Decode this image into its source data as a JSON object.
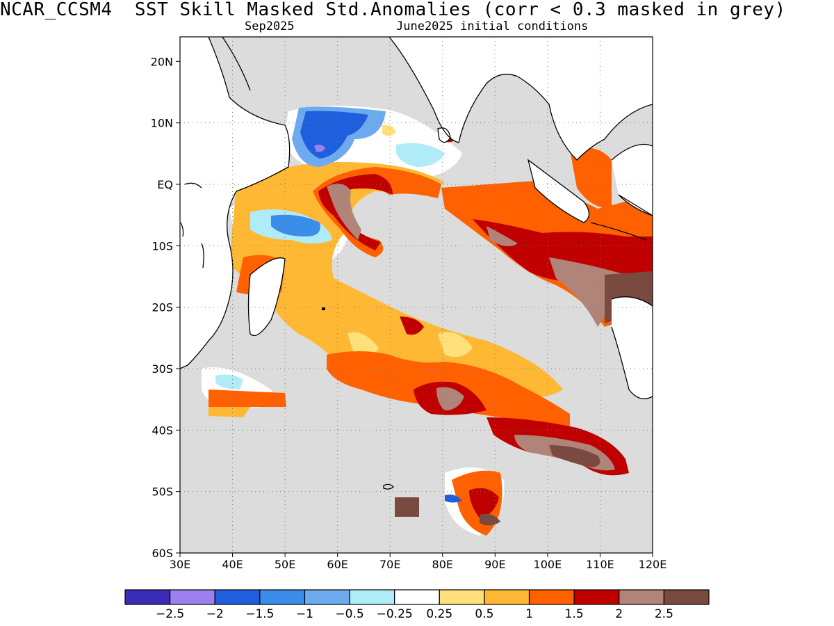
{
  "title": "NCAR_CCSM4  SST Skill Masked Std.Anomalies (corr < 0.3 masked in grey)",
  "subtitle_left": "Sep2025",
  "subtitle_right": "June2025 initial conditions",
  "map": {
    "lon_range": [
      30,
      120
    ],
    "lat_range": [
      -60,
      24
    ],
    "lat_ticks": [
      {
        "value": 20,
        "label": "20N"
      },
      {
        "value": 10,
        "label": "10N"
      },
      {
        "value": 0,
        "label": "EQ"
      },
      {
        "value": -10,
        "label": "10S"
      },
      {
        "value": -20,
        "label": "20S"
      },
      {
        "value": -30,
        "label": "30S"
      },
      {
        "value": -40,
        "label": "40S"
      },
      {
        "value": -50,
        "label": "50S"
      },
      {
        "value": -60,
        "label": "60S"
      }
    ],
    "lon_ticks": [
      {
        "value": 30,
        "label": "30E"
      },
      {
        "value": 40,
        "label": "40E"
      },
      {
        "value": 50,
        "label": "50E"
      },
      {
        "value": 60,
        "label": "60E"
      },
      {
        "value": 70,
        "label": "70E"
      },
      {
        "value": 80,
        "label": "80E"
      },
      {
        "value": 90,
        "label": "90E"
      },
      {
        "value": 100,
        "label": "100E"
      },
      {
        "value": 110,
        "label": "110E"
      },
      {
        "value": 120,
        "label": "120E"
      }
    ],
    "mask_color": "#dcdcdc",
    "regions": [
      {
        "name": "arabian-sea-cold-anomaly",
        "level": -1.5,
        "color": "#2060e0",
        "lon": [
          53,
          62
        ],
        "lat": [
          5,
          12
        ]
      },
      {
        "name": "somali-coast-warm-anomaly",
        "level": 1.0,
        "color": "#ffb833",
        "lon": [
          44,
          78
        ],
        "lat": [
          -20,
          3
        ]
      },
      {
        "name": "south-tropical-cold-anomaly",
        "level": -1.0,
        "color": "#6ea8f0",
        "lon": [
          49,
          57
        ],
        "lat": [
          -9,
          -5
        ]
      },
      {
        "name": "chagos-warm-anomaly",
        "level": 2.0,
        "color": "#c00000",
        "lon": [
          61,
          70
        ],
        "lat": [
          -11,
          2
        ]
      },
      {
        "name": "sumatra-java-warm-anomaly",
        "level": 2.0,
        "color": "#c00000",
        "lon": [
          90,
          120
        ],
        "lat": [
          -18,
          -2
        ]
      },
      {
        "name": "south-indian-warm-anomaly",
        "level": 1.5,
        "color": "#ff6000",
        "lon": [
          64,
          100
        ],
        "lat": [
          -42,
          -26
        ]
      },
      {
        "name": "southern-ocean-warm-anomaly",
        "level": 2.5,
        "color": "#7a4a40",
        "lon": [
          96,
          112
        ],
        "lat": [
          -48,
          -41
        ]
      }
    ]
  },
  "colorbar": {
    "colors": [
      "#3b2db8",
      "#9c80ef",
      "#1f5fdd",
      "#3a8de8",
      "#6eaaf0",
      "#b0ecf7",
      "#ffffff",
      "#ffe07a",
      "#ffb833",
      "#ff6000",
      "#c00000",
      "#b08478",
      "#7a4a40"
    ],
    "labels": [
      "-2.5",
      "-2",
      "-1.5",
      "-1",
      "-0.5",
      "-0.25",
      "0.25",
      "0.5",
      "1",
      "1.5",
      "2",
      "2.5"
    ]
  }
}
